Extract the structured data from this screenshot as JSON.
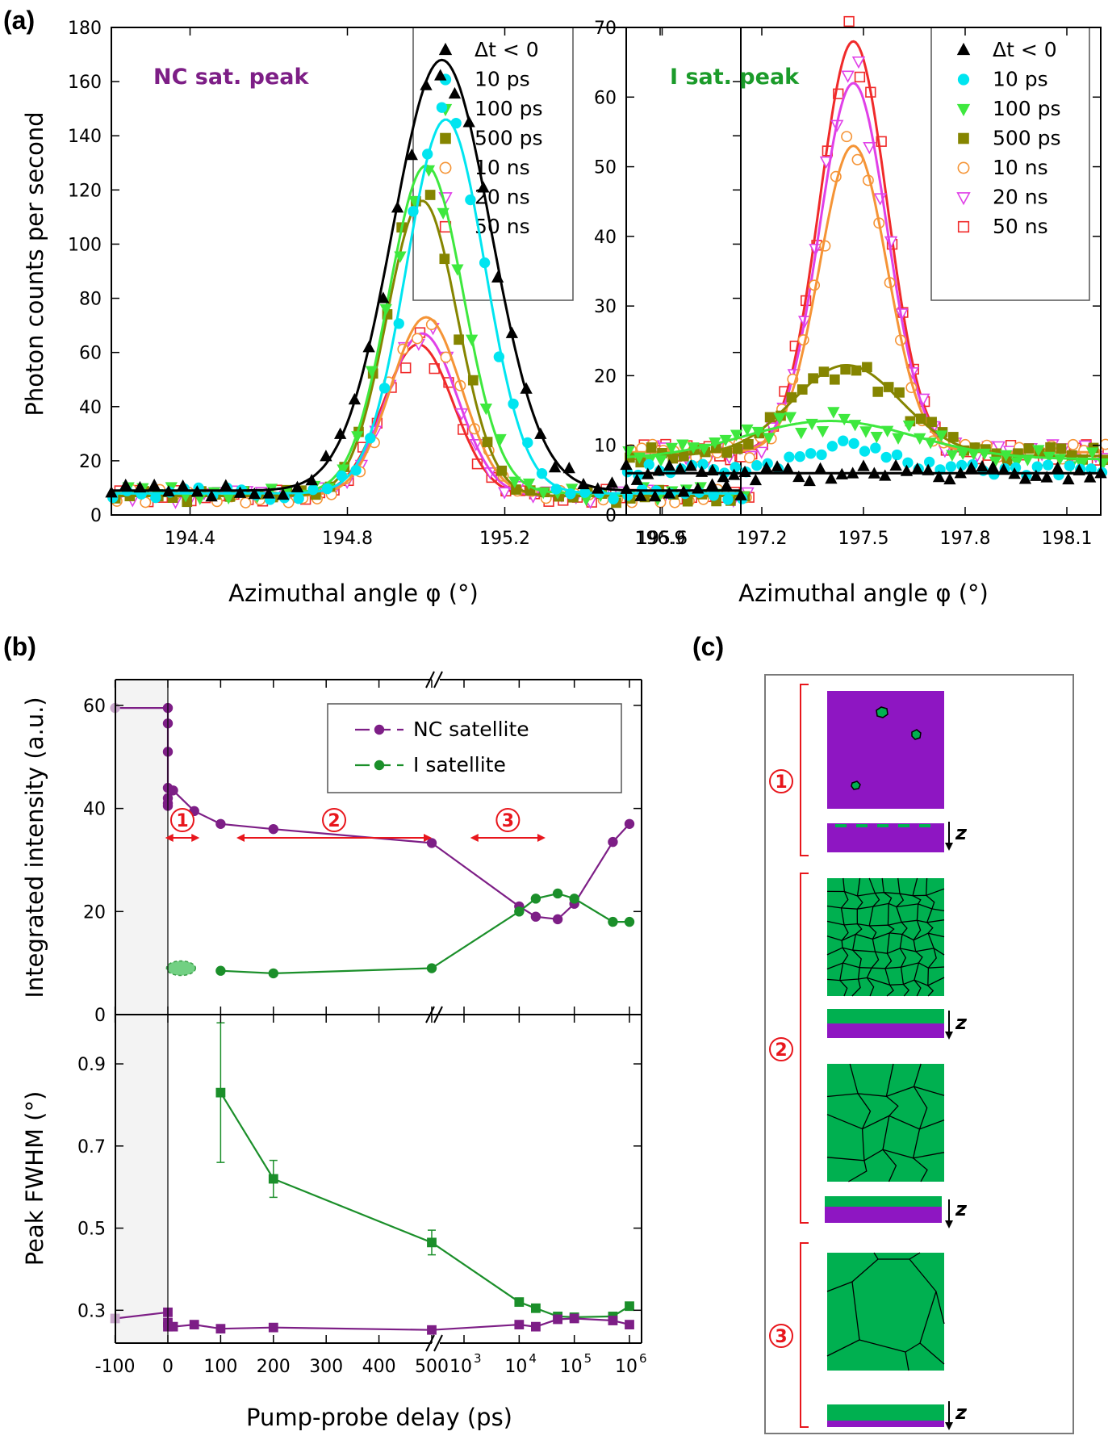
{
  "labels": {
    "a": "(a)",
    "b": "(b)",
    "c": "(c)"
  },
  "colors": {
    "neg": "#000000",
    "ps10": "#00e5f0",
    "ps100": "#3ee83e",
    "ps500": "#858500",
    "ns10": "#f59436",
    "ns20": "#e040e8",
    "ns50": "#f02a2a",
    "nc": "#7d1e86",
    "isat": "#1b8f2a",
    "purple": "#8e16c2",
    "green": "#00b050",
    "red": "#e8161c"
  },
  "chart_data": [
    {
      "type": "scatter",
      "id": "a-left",
      "title": "NC sat. peak",
      "xlabel": "Azimuthal angle φ (°)",
      "ylabel": "Photon counts per second",
      "xlim": [
        194.2,
        195.8
      ],
      "ylim": [
        0,
        180
      ],
      "xticks": [
        "194.4",
        "194.8",
        "195.2",
        "195.6"
      ],
      "xtick_values": [
        194.4,
        194.8,
        195.2,
        195.6
      ],
      "yticks": [
        "0",
        "20",
        "40",
        "60",
        "80",
        "100",
        "120",
        "140",
        "160",
        "180"
      ],
      "ytick_values": [
        0,
        20,
        40,
        60,
        80,
        100,
        120,
        140,
        160,
        180
      ],
      "series": [
        {
          "name": "Δt < 0",
          "marker": "tri-up",
          "filled": true,
          "color": "#000000",
          "fit": {
            "A": 159,
            "c": 195.04,
            "w": 0.125,
            "base": 9
          }
        },
        {
          "name": "10 ps",
          "marker": "circle",
          "filled": true,
          "color": "#00e5f0",
          "fit": {
            "A": 138,
            "c": 195.05,
            "w": 0.1,
            "base": 8
          }
        },
        {
          "name": "100 ps",
          "marker": "tri-down",
          "filled": true,
          "color": "#3ee83e",
          "fit": {
            "A": 121,
            "c": 195.0,
            "w": 0.095,
            "base": 8
          }
        },
        {
          "name": "500 ps",
          "marker": "square",
          "filled": true,
          "color": "#858500",
          "fit": {
            "A": 109,
            "c": 194.99,
            "w": 0.09,
            "base": 7
          }
        },
        {
          "name": "10 ns",
          "marker": "circle",
          "filled": false,
          "color": "#f59436",
          "fit": {
            "A": 66,
            "c": 195.0,
            "w": 0.09,
            "base": 7
          }
        },
        {
          "name": "20 ns",
          "marker": "tri-down",
          "filled": false,
          "color": "#e040e8",
          "fit": {
            "A": 60,
            "c": 194.99,
            "w": 0.09,
            "base": 7
          }
        },
        {
          "name": "50 ns",
          "marker": "square",
          "filled": false,
          "color": "#f02a2a",
          "fit": {
            "A": 56,
            "c": 194.98,
            "w": 0.09,
            "base": 7
          }
        }
      ]
    },
    {
      "type": "scatter",
      "id": "a-right",
      "title": "I sat. peak",
      "xlabel": "Azimuthal angle φ (°)",
      "ylabel": "",
      "xlim": [
        196.8,
        198.2
      ],
      "ylim": [
        0,
        70
      ],
      "xticks": [
        "196.9",
        "197.2",
        "197.5",
        "197.8",
        "198.1"
      ],
      "xtick_values": [
        196.9,
        197.2,
        197.5,
        197.8,
        198.1
      ],
      "yticks": [
        "0",
        "10",
        "20",
        "30",
        "40",
        "50",
        "60",
        "70"
      ],
      "ytick_values": [
        0,
        10,
        20,
        30,
        40,
        50,
        60,
        70
      ],
      "series": [
        {
          "name": "Δt < 0",
          "marker": "tri-up",
          "filled": true,
          "color": "#000000",
          "fit": {
            "A": 0,
            "c": 197.45,
            "w": 0.1,
            "base": 6
          }
        },
        {
          "name": "10 ps",
          "marker": "circle",
          "filled": true,
          "color": "#00e5f0",
          "fit": null
        },
        {
          "name": "100 ps",
          "marker": "tri-down",
          "filled": true,
          "color": "#3ee83e",
          "fit": {
            "A": 5.5,
            "c": 197.4,
            "w": 0.25,
            "base": 8
          }
        },
        {
          "name": "500 ps",
          "marker": "square",
          "filled": true,
          "color": "#858500",
          "fit": {
            "A": 13,
            "c": 197.45,
            "w": 0.16,
            "base": 8.5
          }
        },
        {
          "name": "10 ns",
          "marker": "circle",
          "filled": false,
          "color": "#f59436",
          "fit": {
            "A": 44,
            "c": 197.47,
            "w": 0.1,
            "base": 9
          }
        },
        {
          "name": "20 ns",
          "marker": "tri-down",
          "filled": false,
          "color": "#e040e8",
          "fit": {
            "A": 53,
            "c": 197.47,
            "w": 0.1,
            "base": 9
          }
        },
        {
          "name": "50 ns",
          "marker": "square",
          "filled": false,
          "color": "#f02a2a",
          "fit": {
            "A": 59,
            "c": 197.47,
            "w": 0.1,
            "base": 9
          }
        }
      ]
    },
    {
      "type": "line",
      "id": "b-top",
      "ylabel": "Integrated intensity (a.u.)",
      "ylim": [
        0,
        65
      ],
      "yticks": [
        "0",
        "20",
        "40",
        "60"
      ],
      "ytick_values": [
        0,
        20,
        40,
        60
      ],
      "legend": [
        "NC satellite",
        "I satellite"
      ],
      "series": [
        {
          "name": "NC satellite",
          "color": "#7d1e86",
          "marker": "circle",
          "points": [
            [
              -100,
              59.5
            ],
            [
              0,
              59.5
            ],
            [
              0,
              56.5
            ],
            [
              0,
              51
            ],
            [
              0,
              44
            ],
            [
              0,
              42
            ],
            [
              0,
              41
            ],
            [
              0,
              40.5
            ],
            [
              10,
              43.5
            ],
            [
              50,
              39.5
            ],
            [
              100,
              37
            ],
            [
              200,
              36
            ],
            [
              500,
              33.3
            ],
            [
              10000,
              21
            ],
            [
              20000,
              19
            ],
            [
              50000,
              18.5
            ],
            [
              100000,
              21.5
            ],
            [
              500000,
              33.5
            ],
            [
              1000000,
              37
            ]
          ]
        },
        {
          "name": "I satellite",
          "color": "#1b8f2a",
          "marker": "circle",
          "points": [
            [
              100,
              8.5
            ],
            [
              200,
              8
            ],
            [
              500,
              9
            ],
            [
              10000,
              20
            ],
            [
              20000,
              22.5
            ],
            [
              50000,
              23.5
            ],
            [
              100000,
              22.5
            ],
            [
              500000,
              18
            ],
            [
              1000000,
              18
            ]
          ]
        }
      ],
      "annotations": [
        {
          "label": "1",
          "from": -5,
          "to": 60
        },
        {
          "label": "2",
          "from": 130,
          "to": 500
        },
        {
          "label": "3",
          "from": 1300,
          "to": 30000
        }
      ]
    },
    {
      "type": "line",
      "id": "b-bottom",
      "ylabel": "Peak FWHM (°)",
      "xlabel": "Pump-probe delay (ps)",
      "ylim": [
        0.22,
        1.02
      ],
      "yticks": [
        "0.3",
        "0.5",
        "0.7",
        "0.9"
      ],
      "ytick_values": [
        0.3,
        0.5,
        0.7,
        0.9
      ],
      "xticks_linear": [
        "-100",
        "0",
        "100",
        "200",
        "300",
        "400",
        "500"
      ],
      "xticks_linear_values": [
        -100,
        0,
        100,
        200,
        300,
        400,
        500
      ],
      "xticks_log": [
        "3",
        "4",
        "5",
        "6"
      ],
      "xticks_log_values": [
        1000,
        10000,
        100000,
        1000000
      ],
      "series": [
        {
          "name": "I satellite",
          "color": "#1b8f2a",
          "marker": "square",
          "points": [
            [
              100,
              0.83,
              0.17
            ],
            [
              200,
              0.62,
              0.045
            ],
            [
              500,
              0.465,
              0.03
            ],
            [
              10000,
              0.32,
              0
            ],
            [
              20000,
              0.305,
              0
            ],
            [
              50000,
              0.285,
              0
            ],
            [
              100000,
              0.283,
              0
            ],
            [
              500000,
              0.285,
              0
            ],
            [
              1000000,
              0.31,
              0
            ]
          ]
        },
        {
          "name": "NC satellite",
          "color": "#7d1e86",
          "marker": "square",
          "points": [
            [
              -100,
              0.28,
              0
            ],
            [
              0,
              0.295,
              0
            ],
            [
              0,
              0.27,
              0
            ],
            [
              0,
              0.26,
              0
            ],
            [
              10,
              0.26,
              0
            ],
            [
              50,
              0.265,
              0
            ],
            [
              100,
              0.255,
              0
            ],
            [
              200,
              0.258,
              0
            ],
            [
              500,
              0.252,
              0
            ],
            [
              10000,
              0.265,
              0
            ],
            [
              20000,
              0.26,
              0
            ],
            [
              50000,
              0.278,
              0
            ],
            [
              100000,
              0.28,
              0
            ],
            [
              500000,
              0.275,
              0
            ],
            [
              1000000,
              0.265,
              0
            ]
          ]
        }
      ]
    }
  ],
  "panel_c": {
    "stages": [
      "1",
      "2",
      "3"
    ],
    "axis_label": "z"
  }
}
